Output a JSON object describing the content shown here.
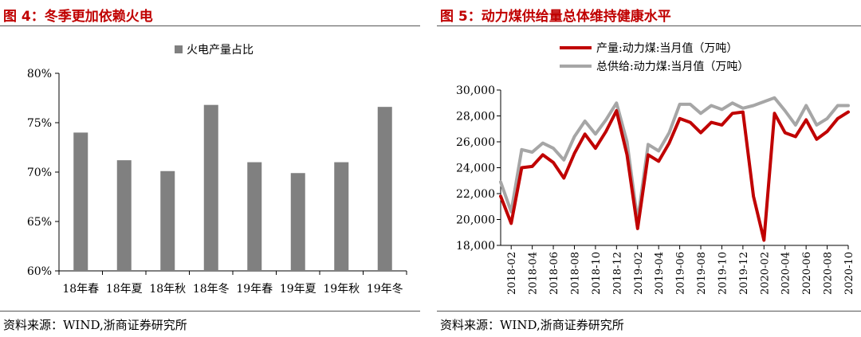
{
  "left": {
    "title": "图 4：冬季更加依赖火电",
    "source": "资料来源：WIND,浙商证券研究所"
  },
  "right": {
    "title": "图 5：动力煤供给量总体维持健康水平",
    "source": "资料来源：WIND,浙商证券研究所"
  },
  "chart_data": [
    {
      "type": "bar",
      "title": "",
      "categories": [
        "18年春",
        "18年夏",
        "18年秋",
        "18年冬",
        "19年春",
        "19年夏",
        "19年秋",
        "19年冬"
      ],
      "series": [
        {
          "name": "火电产量占比",
          "values": [
            74.0,
            71.2,
            70.1,
            76.8,
            71.0,
            69.9,
            71.0,
            76.6
          ],
          "color": "#808080"
        }
      ],
      "ylim": [
        60,
        80
      ],
      "yticks": [
        "60%",
        "65%",
        "70%",
        "75%",
        "80%"
      ],
      "ytick_values": [
        60,
        65,
        70,
        75,
        80
      ],
      "legend": "top-center",
      "grid": false
    },
    {
      "type": "line",
      "title": "",
      "x": [
        "2018-01",
        "2018-02",
        "2018-03",
        "2018-04",
        "2018-05",
        "2018-06",
        "2018-07",
        "2018-08",
        "2018-09",
        "2018-10",
        "2018-11",
        "2018-12",
        "2019-01",
        "2019-02",
        "2019-03",
        "2019-04",
        "2019-05",
        "2019-06",
        "2019-07",
        "2019-08",
        "2019-09",
        "2019-10",
        "2019-11",
        "2019-12",
        "2020-01",
        "2020-02",
        "2020-03",
        "2020-04",
        "2020-05",
        "2020-06",
        "2020-07",
        "2020-08",
        "2020-09",
        "2020-10"
      ],
      "xtick_labels": [
        "2018-02",
        "2018-04",
        "2018-06",
        "2018-08",
        "2018-10",
        "2018-12",
        "2019-02",
        "2019-04",
        "2019-06",
        "2019-08",
        "2019-10",
        "2019-12",
        "2020-02",
        "2020-04",
        "2020-06",
        "2020-08",
        "2020-10"
      ],
      "series": [
        {
          "name": "产量:动力煤:当月值（万吨）",
          "color": "#c00000",
          "values": [
            21800,
            19700,
            24000,
            24100,
            25000,
            24400,
            23200,
            25100,
            26600,
            25500,
            26800,
            28400,
            25000,
            19300,
            25000,
            24500,
            25900,
            27800,
            27500,
            26700,
            27500,
            27300,
            28200,
            28300,
            21800,
            18400,
            28200,
            26700,
            26400,
            27700,
            26200,
            26800,
            27800,
            28300
          ]
        },
        {
          "name": "总供给:动力煤:当月值（万吨）",
          "color": "#a6a6a6",
          "values": [
            22900,
            20600,
            25400,
            25200,
            25900,
            25500,
            24600,
            26400,
            27600,
            26600,
            27700,
            29000,
            26000,
            19900,
            25800,
            25300,
            26700,
            28900,
            28900,
            28200,
            28800,
            28500,
            29000,
            28600,
            28800,
            29100,
            29400,
            28400,
            27300,
            28800,
            27300,
            27800,
            28800,
            28800
          ]
        }
      ],
      "ylim": [
        18000,
        30000
      ],
      "yticks": [
        "18,000",
        "20,000",
        "22,000",
        "24,000",
        "26,000",
        "28,000",
        "30,000"
      ],
      "ytick_values": [
        18000,
        20000,
        22000,
        24000,
        26000,
        28000,
        30000
      ],
      "legend": "top-left",
      "grid": false
    }
  ]
}
